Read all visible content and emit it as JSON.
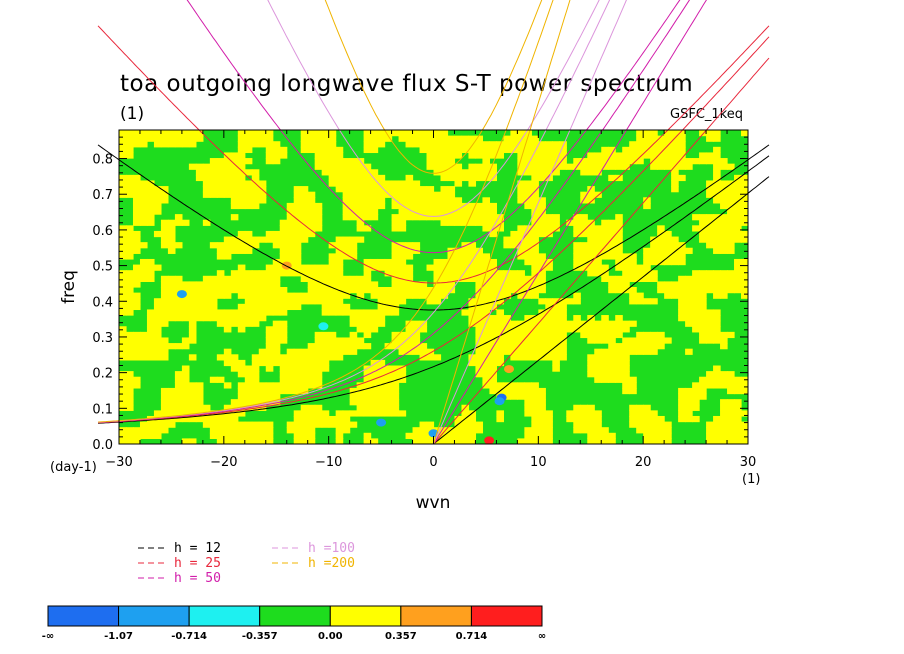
{
  "chart_data": {
    "type": "heatmap",
    "title": "toa outgoing longwave flux S-T power spectrum",
    "subtitle_left": "(1)",
    "subtitle_right": "GSFC_1keq",
    "xlabel": "wvn",
    "xunit": "(1)",
    "ylabel": "freq",
    "yunit": "(day-1)",
    "xlim": [
      -30,
      30
    ],
    "ylim": [
      0,
      0.88
    ],
    "x_ticks": [
      -30,
      -20,
      -10,
      0,
      10,
      20,
      30
    ],
    "y_ticks": [
      0.0,
      0.1,
      0.2,
      0.3,
      0.4,
      0.5,
      0.6,
      0.7,
      0.8
    ],
    "y_tick_labels": [
      "0.0",
      "0.1",
      "0.2",
      "0.3",
      "0.4",
      "0.5",
      "0.6",
      "0.7",
      "0.8"
    ],
    "field": "noise-like field, mostly in the -0.357..0.00 (green) and 0.00..0.357 (yellow) classes, with isolated spots below -0.357 and above 0.357",
    "dispersion_curves": [
      {
        "name": "h = 12",
        "color": "#000000",
        "equivalent_depth_m": 12
      },
      {
        "name": "h = 25",
        "color": "#e8283c",
        "equivalent_depth_m": 25
      },
      {
        "name": "h = 50",
        "color": "#d21eaa",
        "equivalent_depth_m": 50
      },
      {
        "name": "h =100",
        "color": "#dc96dc",
        "equivalent_depth_m": 100
      },
      {
        "name": "h =200",
        "color": "#f0b400",
        "equivalent_depth_m": 200
      }
    ],
    "colorbar": {
      "colors": [
        "#1e6ef0",
        "#1ea0f0",
        "#1ef0f0",
        "#1edc1e",
        "#ffff00",
        "#ffa01e",
        "#ff1e1e"
      ],
      "labels": [
        "-∞",
        "-1.07",
        "-0.714",
        "-0.357",
        "0.00",
        "0.357",
        "0.714",
        "∞"
      ]
    }
  }
}
